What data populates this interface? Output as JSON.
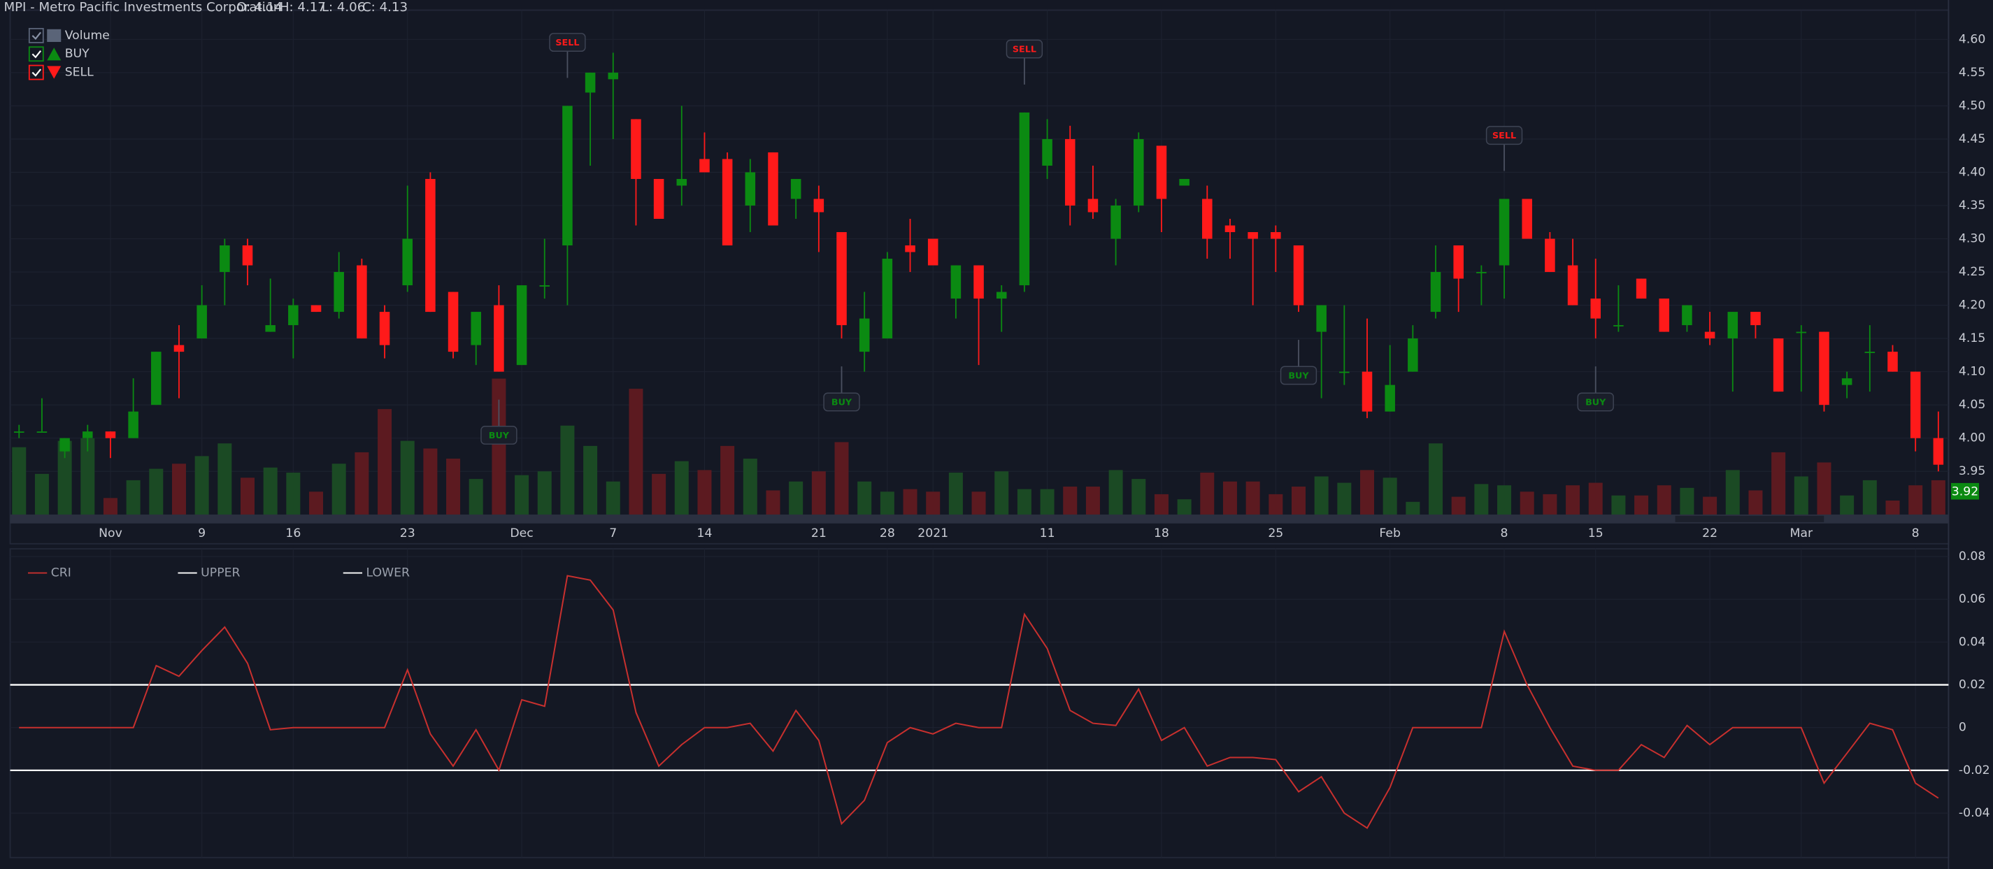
{
  "header": {
    "title": "MPI - Metro Pacific Investments Corporation",
    "fields": [
      "O: 4.14",
      "H: 4.17",
      "L: 4.06",
      "C: 4.13"
    ]
  },
  "chart_data": [
    {
      "type": "candlestick",
      "categories": [
        null,
        null,
        null,
        null,
        "Nov",
        null,
        null,
        null,
        "9",
        null,
        null,
        null,
        "16",
        null,
        null,
        null,
        null,
        "23",
        null,
        null,
        null,
        null,
        "Dec",
        null,
        null,
        null,
        "7",
        null,
        null,
        null,
        "14",
        null,
        null,
        null,
        null,
        "21",
        null,
        null,
        "28",
        null,
        "2021",
        null,
        null,
        null,
        null,
        "11",
        null,
        null,
        null,
        null,
        "18",
        null,
        null,
        null,
        null,
        "25",
        null,
        null,
        null,
        null,
        "Feb",
        null,
        null,
        null,
        null,
        "8",
        null,
        null,
        null,
        "15",
        null,
        null,
        null,
        null,
        "22",
        null,
        null,
        null,
        "Mar",
        null,
        null,
        null,
        null,
        "8",
        null
      ],
      "open": [
        4.01,
        4.01,
        3.98,
        4.0,
        4.01,
        4.0,
        4.05,
        4.14,
        4.15,
        4.25,
        4.29,
        4.16,
        4.17,
        4.2,
        4.19,
        4.26,
        4.19,
        4.23,
        4.39,
        4.22,
        4.14,
        4.2,
        4.11,
        4.23,
        4.29,
        4.52,
        4.54,
        4.48,
        4.39,
        4.38,
        4.42,
        4.42,
        4.35,
        4.43,
        4.36,
        4.36,
        4.31,
        4.13,
        4.15,
        4.29,
        4.3,
        4.21,
        4.26,
        4.21,
        4.23,
        4.41,
        4.45,
        4.36,
        4.3,
        4.35,
        4.44,
        4.38,
        4.36,
        4.32,
        4.31,
        4.31,
        4.29,
        4.16,
        4.1,
        4.1,
        4.04,
        4.1,
        4.19,
        4.29,
        4.25,
        4.26,
        4.36,
        4.3,
        4.26,
        4.21,
        4.17,
        4.24,
        4.21,
        4.17,
        4.16,
        4.15,
        4.19,
        4.15,
        4.16,
        4.16,
        4.08,
        4.13,
        4.13,
        4.1,
        4.0
      ],
      "high": [
        4.02,
        4.06,
        4.0,
        4.02,
        4.01,
        4.09,
        4.13,
        4.17,
        4.23,
        4.3,
        4.3,
        4.24,
        4.21,
        4.2,
        4.28,
        4.27,
        4.2,
        4.38,
        4.4,
        4.22,
        4.19,
        4.23,
        4.23,
        4.3,
        4.5,
        4.55,
        4.58,
        4.48,
        4.39,
        4.5,
        4.46,
        4.43,
        4.42,
        4.43,
        4.39,
        4.38,
        4.31,
        4.22,
        4.28,
        4.33,
        4.3,
        4.26,
        4.26,
        4.23,
        4.49,
        4.48,
        4.47,
        4.41,
        4.36,
        4.46,
        4.44,
        4.39,
        4.38,
        4.33,
        4.31,
        4.32,
        4.29,
        4.2,
        4.2,
        4.18,
        4.14,
        4.17,
        4.29,
        4.29,
        4.26,
        4.36,
        4.36,
        4.31,
        4.3,
        4.27,
        4.23,
        4.24,
        4.21,
        4.2,
        4.19,
        4.19,
        4.19,
        4.15,
        4.17,
        4.16,
        4.1,
        4.17,
        4.14,
        4.1,
        4.04
      ],
      "low": [
        4.0,
        4.01,
        3.97,
        3.98,
        3.97,
        4.0,
        4.05,
        4.06,
        4.15,
        4.2,
        4.23,
        4.16,
        4.12,
        4.19,
        4.18,
        4.15,
        4.12,
        4.22,
        4.19,
        4.12,
        4.11,
        4.1,
        4.11,
        4.21,
        4.2,
        4.41,
        4.45,
        4.32,
        4.33,
        4.35,
        4.4,
        4.29,
        4.31,
        4.32,
        4.33,
        4.28,
        4.15,
        4.1,
        4.15,
        4.25,
        4.26,
        4.18,
        4.11,
        4.16,
        4.22,
        4.39,
        4.32,
        4.33,
        4.26,
        4.34,
        4.31,
        4.38,
        4.27,
        4.27,
        4.2,
        4.25,
        4.19,
        4.06,
        4.08,
        4.03,
        4.04,
        4.1,
        4.18,
        4.19,
        4.2,
        4.21,
        4.3,
        4.25,
        4.2,
        4.15,
        4.16,
        4.21,
        4.16,
        4.16,
        4.14,
        4.07,
        4.15,
        4.07,
        4.07,
        4.04,
        4.06,
        4.07,
        4.1,
        3.98,
        3.95
      ],
      "close": [
        4.01,
        4.01,
        4.0,
        4.01,
        4.0,
        4.04,
        4.13,
        4.13,
        4.2,
        4.29,
        4.26,
        4.17,
        4.2,
        4.19,
        4.25,
        4.15,
        4.14,
        4.3,
        4.19,
        4.13,
        4.19,
        4.1,
        4.23,
        4.23,
        4.5,
        4.55,
        4.55,
        4.39,
        4.33,
        4.39,
        4.4,
        4.29,
        4.4,
        4.32,
        4.39,
        4.34,
        4.17,
        4.18,
        4.27,
        4.28,
        4.26,
        4.26,
        4.21,
        4.22,
        4.49,
        4.45,
        4.35,
        4.34,
        4.35,
        4.45,
        4.36,
        4.39,
        4.3,
        4.31,
        4.3,
        4.3,
        4.2,
        4.2,
        4.1,
        4.04,
        4.08,
        4.15,
        4.25,
        4.24,
        4.25,
        4.36,
        4.3,
        4.25,
        4.2,
        4.18,
        4.17,
        4.21,
        4.16,
        4.2,
        4.15,
        4.19,
        4.17,
        4.07,
        4.16,
        4.05,
        4.09,
        4.13,
        4.1,
        4.0,
        3.96
      ],
      "up_color": "#0b8a12",
      "down_color": "#ff1a1a",
      "volume": {
        "name": "Volume",
        "up_color": "#1b4a24",
        "down_color": "#5c1a20",
        "lim": [
          0,
          120
        ],
        "values": [
          53,
          32,
          58,
          60,
          13,
          27,
          36,
          40,
          46,
          56,
          29,
          37,
          33,
          18,
          40,
          49,
          83,
          58,
          52,
          44,
          28,
          107,
          31,
          34,
          70,
          54,
          26,
          99,
          32,
          42,
          35,
          54,
          44,
          19,
          26,
          34,
          57,
          26,
          18,
          20,
          18,
          33,
          18,
          34,
          20,
          20,
          22,
          22,
          35,
          28,
          16,
          12,
          33,
          26,
          26,
          16,
          22,
          30,
          25,
          35,
          29,
          10,
          56,
          14,
          24,
          23,
          18,
          16,
          23,
          25,
          15,
          15,
          23,
          21,
          14,
          35,
          19,
          49,
          30,
          41,
          15,
          27,
          11,
          23,
          27
        ]
      },
      "legend": [
        {
          "name": "Volume",
          "color": "#5a6478"
        },
        {
          "name": "BUY",
          "color": "#0b8a12"
        },
        {
          "name": "SELL",
          "color": "#ff1a1a"
        }
      ],
      "signals": [
        {
          "label": "SELL",
          "index": 24
        },
        {
          "label": "SELL",
          "index": 44
        },
        {
          "label": "SELL",
          "index": 65
        },
        {
          "label": "BUY",
          "index": 21
        },
        {
          "label": "BUY",
          "index": 36
        },
        {
          "label": "BUY",
          "index": 56
        },
        {
          "label": "BUY",
          "index": 69
        }
      ],
      "last_price": 3.92,
      "ylim": [
        3.885,
        4.644
      ],
      "yticks": [
        {
          "value": 4.6,
          "label": "4.60"
        },
        4.55,
        {
          "value": 4.5,
          "label": "4.50"
        },
        4.45,
        {
          "value": 4.4,
          "label": "4.40"
        },
        4.35,
        {
          "value": 4.3,
          "label": "4.30"
        },
        4.25,
        {
          "value": 4.2,
          "label": "4.20"
        },
        4.15,
        {
          "value": 4.1,
          "label": "4.10"
        },
        4.05,
        {
          "value": 4.0,
          "label": "4.00"
        },
        3.95
      ],
      "grid": true
    },
    {
      "type": "line",
      "series": [
        {
          "name": "CRI",
          "color": "#c8302e",
          "values": [
            0,
            0,
            0,
            0,
            0,
            0,
            0.029,
            0.024,
            0.036,
            0.047,
            0.03,
            -0.001,
            0,
            0,
            0,
            0,
            0,
            0.027,
            -0.003,
            -0.018,
            -0.001,
            -0.02,
            0.013,
            0.01,
            0.071,
            0.069,
            0.055,
            0.007,
            -0.018,
            -0.008,
            0,
            0,
            0.002,
            -0.011,
            0.008,
            -0.006,
            -0.045,
            -0.034,
            -0.007,
            0,
            -0.003,
            0.002,
            0,
            0,
            0.053,
            0.037,
            0.008,
            0.002,
            0.001,
            0.018,
            -0.006,
            0,
            -0.018,
            -0.014,
            -0.014,
            -0.015,
            -0.03,
            -0.023,
            -0.04,
            -0.047,
            -0.028,
            0,
            0,
            0,
            0,
            0.045,
            0.02,
            0,
            -0.018,
            -0.02,
            -0.02,
            -0.008,
            -0.014,
            0.001,
            -0.008,
            0,
            0,
            0,
            0,
            -0.026,
            -0.012,
            0.002,
            -0.001,
            -0.026,
            -0.033
          ]
        }
      ],
      "bands": [
        {
          "name": "UPPER",
          "value": 0.02,
          "color": "#ffffff"
        },
        {
          "name": "LOWER",
          "value": -0.02,
          "color": "#ffffff"
        }
      ],
      "ylim": [
        -0.0608,
        0.0836
      ],
      "yticks": [
        0.08,
        0.06,
        0.04,
        0.02,
        0,
        -0.02,
        -0.04
      ],
      "grid": true
    }
  ]
}
